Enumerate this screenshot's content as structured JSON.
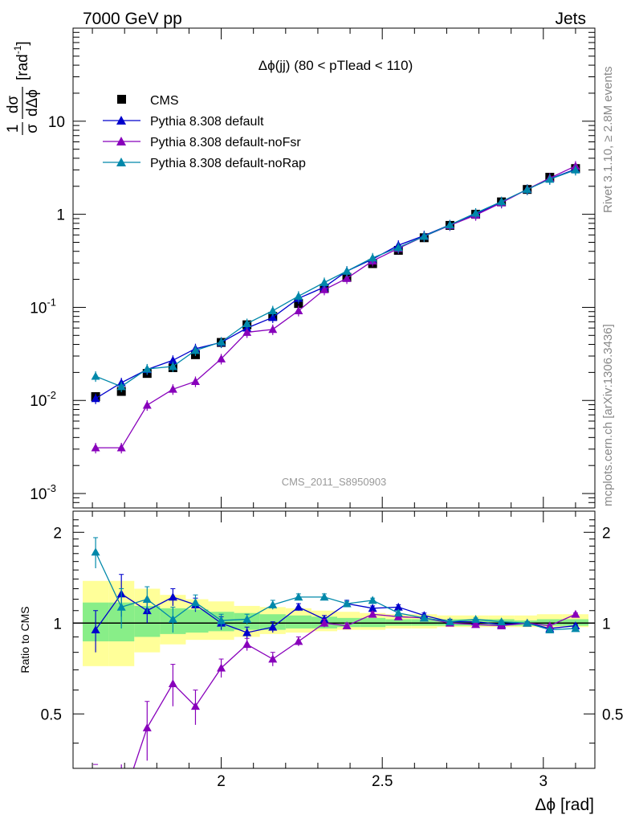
{
  "header": {
    "left": "7000 GeV pp",
    "right": "Jets"
  },
  "side_labels": {
    "rivet": "Rivet 3.1.10, ≥ 2.8M events",
    "mcplots": "mcplots.cern.ch [arXiv:1306.3436]"
  },
  "chart_data": {
    "type": "line",
    "title": "Δϕ(jj) (80 < pTlead <  110)",
    "watermark": "CMS_2011_S8950903",
    "xlabel": "Δϕ [rad]",
    "ylabel": "1/σ dσ/dΔϕ [rad⁻¹]",
    "ylabel_parts": {
      "num": "1",
      "den": "σ",
      "dnum": "dσ",
      "dden": "dΔϕ",
      "unit": "[rad",
      "unit_sup": "-1",
      "unit_close": "]"
    },
    "x_range": [
      1.54,
      3.16
    ],
    "y_scale": "log",
    "y_range": [
      0.0007,
      100
    ],
    "x_ticks": [
      "2",
      "2.5",
      "3"
    ],
    "x_tick_values": [
      2,
      2.5,
      3
    ],
    "y_ticks": [
      {
        "value": 0.001,
        "base": "10",
        "exp": "-3"
      },
      {
        "value": 0.01,
        "base": "10",
        "exp": "-2"
      },
      {
        "value": 0.1,
        "base": "10",
        "exp": "-1"
      },
      {
        "value": 1,
        "base": "1",
        "exp": ""
      },
      {
        "value": 10,
        "base": "10",
        "exp": ""
      }
    ],
    "legend_position": "top-left",
    "x": [
      1.61,
      1.69,
      1.77,
      1.85,
      1.92,
      2.0,
      2.08,
      2.16,
      2.24,
      2.32,
      2.39,
      2.47,
      2.55,
      2.63,
      2.71,
      2.79,
      2.87,
      2.95,
      3.02,
      3.1
    ],
    "series": [
      {
        "name": "CMS",
        "color": "#000000",
        "marker": "square",
        "values": [
          0.011,
          0.0125,
          0.0195,
          0.0225,
          0.031,
          0.042,
          0.065,
          0.08,
          0.11,
          0.16,
          0.21,
          0.295,
          0.41,
          0.56,
          0.76,
          1.0,
          1.36,
          1.85,
          2.5,
          3.1
        ]
      },
      {
        "name": "Pythia 8.308 default",
        "color": "#0000cc",
        "marker": "triangle",
        "values": [
          0.0105,
          0.0155,
          0.0215,
          0.027,
          0.036,
          0.042,
          0.06,
          0.078,
          0.125,
          0.165,
          0.245,
          0.33,
          0.465,
          0.59,
          0.77,
          1.01,
          1.34,
          1.85,
          2.4,
          3.05
        ]
      },
      {
        "name": "Pythia 8.308 default-noFsr",
        "color": "#8800bb",
        "marker": "triangle",
        "values": [
          0.0031,
          0.0031,
          0.0089,
          0.0132,
          0.016,
          0.028,
          0.054,
          0.058,
          0.092,
          0.155,
          0.205,
          0.315,
          0.43,
          0.58,
          0.76,
          0.98,
          1.33,
          1.86,
          2.45,
          3.3
        ]
      },
      {
        "name": "Pythia 8.308 default-noRap",
        "color": "#0088aa",
        "marker": "triangle",
        "values": [
          0.0182,
          0.0141,
          0.0218,
          0.0232,
          0.0345,
          0.0425,
          0.067,
          0.092,
          0.132,
          0.185,
          0.245,
          0.34,
          0.44,
          0.58,
          0.77,
          1.03,
          1.37,
          1.85,
          2.38,
          3.0
        ]
      }
    ],
    "ratio": {
      "ylabel": "Ratio to CMS",
      "y_range": [
        0.33,
        2.35
      ],
      "y_ticks": [
        "0.5",
        "1",
        "2"
      ],
      "y_tick_values": [
        0.5,
        1,
        2
      ],
      "band_yellow": [
        [
          0.72,
          1.38
        ],
        [
          0.72,
          1.38
        ],
        [
          0.8,
          1.3
        ],
        [
          0.85,
          1.24
        ],
        [
          0.88,
          1.2
        ],
        [
          0.88,
          1.18
        ],
        [
          0.9,
          1.14
        ],
        [
          0.92,
          1.13
        ],
        [
          0.93,
          1.12
        ],
        [
          0.94,
          1.1
        ],
        [
          0.95,
          1.09
        ],
        [
          0.95,
          1.08
        ],
        [
          0.96,
          1.07
        ],
        [
          0.96,
          1.07
        ],
        [
          0.97,
          1.06
        ],
        [
          0.97,
          1.06
        ],
        [
          0.97,
          1.06
        ],
        [
          0.97,
          1.06
        ],
        [
          0.97,
          1.07
        ],
        [
          0.97,
          1.07
        ]
      ],
      "band_green": [
        [
          0.87,
          1.17
        ],
        [
          0.87,
          1.17
        ],
        [
          0.9,
          1.14
        ],
        [
          0.92,
          1.12
        ],
        [
          0.93,
          1.11
        ],
        [
          0.94,
          1.09
        ],
        [
          0.95,
          1.08
        ],
        [
          0.95,
          1.07
        ],
        [
          0.96,
          1.06
        ],
        [
          0.96,
          1.05
        ],
        [
          0.97,
          1.04
        ],
        [
          0.97,
          1.04
        ],
        [
          0.98,
          1.03
        ],
        [
          0.98,
          1.03
        ],
        [
          0.98,
          1.03
        ],
        [
          0.98,
          1.03
        ],
        [
          0.98,
          1.03
        ],
        [
          0.98,
          1.02
        ],
        [
          0.98,
          1.03
        ],
        [
          0.98,
          1.03
        ]
      ],
      "series": [
        {
          "name": "Pythia 8.308 default",
          "color": "#0000cc",
          "values": [
            0.95,
            1.25,
            1.1,
            1.22,
            1.15,
            1.0,
            0.93,
            0.97,
            1.13,
            1.03,
            1.16,
            1.12,
            1.13,
            1.06,
            1.01,
            1.01,
            0.99,
            1.0,
            0.96,
            0.98
          ],
          "errors": [
            0.15,
            0.2,
            0.1,
            0.08,
            0.06,
            0.05,
            0.04,
            0.04,
            0.03,
            0.03,
            0.03,
            0.02,
            0.02,
            0.02,
            0.02,
            0.01,
            0.01,
            0.01,
            0.01,
            0.01
          ]
        },
        {
          "name": "Pythia 8.308 default-noFsr",
          "color": "#8800bb",
          "values": [
            0.28,
            0.25,
            0.45,
            0.63,
            0.53,
            0.71,
            0.85,
            0.76,
            0.87,
            1.0,
            0.98,
            1.07,
            1.05,
            1.04,
            1.0,
            0.99,
            0.98,
            1.0,
            0.98,
            1.07
          ],
          "errors": [
            0.06,
            0.06,
            0.1,
            0.1,
            0.07,
            0.05,
            0.04,
            0.04,
            0.03,
            0.03,
            0.02,
            0.02,
            0.02,
            0.02,
            0.01,
            0.01,
            0.01,
            0.01,
            0.01,
            0.01
          ]
        },
        {
          "name": "Pythia 8.308 default-noRap",
          "color": "#0088aa",
          "values": [
            1.72,
            1.13,
            1.2,
            1.03,
            1.17,
            1.02,
            1.03,
            1.15,
            1.22,
            1.22,
            1.16,
            1.19,
            1.08,
            1.04,
            1.01,
            1.03,
            1.01,
            1.0,
            0.95,
            0.96
          ],
          "errors": [
            0.2,
            0.17,
            0.12,
            0.1,
            0.07,
            0.05,
            0.04,
            0.04,
            0.03,
            0.03,
            0.02,
            0.02,
            0.02,
            0.02,
            0.01,
            0.01,
            0.01,
            0.01,
            0.01,
            0.01
          ]
        }
      ]
    }
  }
}
